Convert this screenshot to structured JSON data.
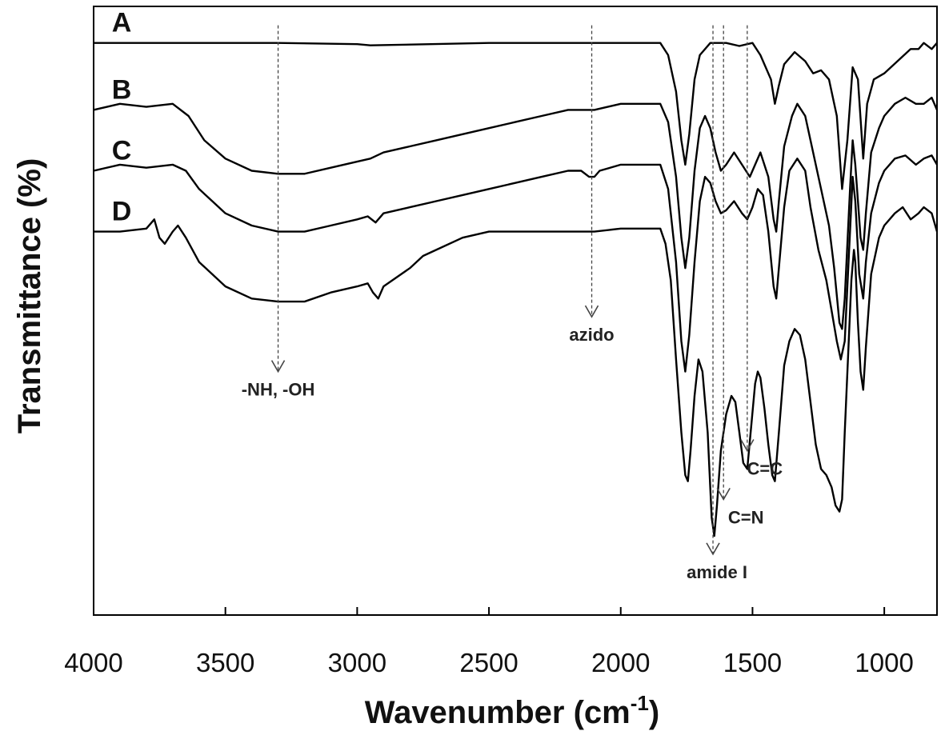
{
  "chart_data": {
    "type": "line",
    "xlabel": "Wavenumber (cm",
    "xlabel_sup": "-1",
    "xlabel_close": ")",
    "ylabel": "Transmittance (%)",
    "xlim": [
      4000,
      800
    ],
    "ylim": [
      0,
      100
    ],
    "x_reversed": true,
    "grid": false,
    "xticks": [
      4000,
      3500,
      3000,
      2500,
      2000,
      1500,
      1000
    ],
    "series": [
      {
        "name": "A",
        "points": [
          [
            4000,
            94
          ],
          [
            3500,
            94
          ],
          [
            3300,
            94
          ],
          [
            3000,
            93.8
          ],
          [
            2950,
            93.6
          ],
          [
            2500,
            94
          ],
          [
            2100,
            94
          ],
          [
            1850,
            94
          ],
          [
            1820,
            92
          ],
          [
            1790,
            86
          ],
          [
            1770,
            78
          ],
          [
            1755,
            74
          ],
          [
            1740,
            79
          ],
          [
            1720,
            88
          ],
          [
            1700,
            92
          ],
          [
            1660,
            94
          ],
          [
            1600,
            94
          ],
          [
            1550,
            93.5
          ],
          [
            1500,
            94
          ],
          [
            1470,
            92
          ],
          [
            1430,
            88
          ],
          [
            1415,
            84
          ],
          [
            1400,
            87
          ],
          [
            1380,
            90.5
          ],
          [
            1340,
            92.5
          ],
          [
            1300,
            91
          ],
          [
            1270,
            89
          ],
          [
            1240,
            89.5
          ],
          [
            1210,
            88
          ],
          [
            1180,
            82
          ],
          [
            1160,
            70
          ],
          [
            1140,
            78
          ],
          [
            1120,
            90
          ],
          [
            1100,
            88
          ],
          [
            1080,
            75
          ],
          [
            1065,
            84
          ],
          [
            1040,
            88
          ],
          [
            1000,
            89
          ],
          [
            950,
            91
          ],
          [
            900,
            93
          ],
          [
            870,
            93
          ],
          [
            850,
            94
          ],
          [
            820,
            93
          ],
          [
            800,
            94
          ]
        ]
      },
      {
        "name": "B",
        "points": [
          [
            4000,
            83
          ],
          [
            3900,
            84
          ],
          [
            3800,
            83.5
          ],
          [
            3700,
            84
          ],
          [
            3640,
            82
          ],
          [
            3580,
            78
          ],
          [
            3500,
            75
          ],
          [
            3400,
            73
          ],
          [
            3300,
            72.5
          ],
          [
            3200,
            72.5
          ],
          [
            3100,
            73.5
          ],
          [
            3000,
            74.5
          ],
          [
            2950,
            75
          ],
          [
            2900,
            76
          ],
          [
            2800,
            77
          ],
          [
            2700,
            78
          ],
          [
            2600,
            79
          ],
          [
            2500,
            80
          ],
          [
            2400,
            81
          ],
          [
            2300,
            82
          ],
          [
            2200,
            83
          ],
          [
            2100,
            83
          ],
          [
            2000,
            84
          ],
          [
            1850,
            84
          ],
          [
            1820,
            81
          ],
          [
            1790,
            72
          ],
          [
            1770,
            62
          ],
          [
            1755,
            57
          ],
          [
            1740,
            62
          ],
          [
            1720,
            73
          ],
          [
            1700,
            80
          ],
          [
            1680,
            82
          ],
          [
            1660,
            80
          ],
          [
            1640,
            76
          ],
          [
            1620,
            73
          ],
          [
            1600,
            74
          ],
          [
            1570,
            76
          ],
          [
            1540,
            74
          ],
          [
            1510,
            72
          ],
          [
            1490,
            74
          ],
          [
            1470,
            76
          ],
          [
            1440,
            72
          ],
          [
            1420,
            65
          ],
          [
            1410,
            63
          ],
          [
            1400,
            68
          ],
          [
            1380,
            77
          ],
          [
            1350,
            82
          ],
          [
            1330,
            84
          ],
          [
            1300,
            82
          ],
          [
            1270,
            76
          ],
          [
            1240,
            70
          ],
          [
            1210,
            64
          ],
          [
            1190,
            57
          ],
          [
            1170,
            48
          ],
          [
            1160,
            47
          ],
          [
            1150,
            52
          ],
          [
            1130,
            70
          ],
          [
            1120,
            78
          ],
          [
            1110,
            74
          ],
          [
            1090,
            62
          ],
          [
            1080,
            60
          ],
          [
            1070,
            66
          ],
          [
            1050,
            76
          ],
          [
            1020,
            80
          ],
          [
            1000,
            82
          ],
          [
            960,
            84
          ],
          [
            920,
            85
          ],
          [
            880,
            84
          ],
          [
            850,
            84
          ],
          [
            820,
            85
          ],
          [
            800,
            83
          ]
        ]
      },
      {
        "name": "C",
        "points": [
          [
            4000,
            73
          ],
          [
            3900,
            74
          ],
          [
            3800,
            73.5
          ],
          [
            3700,
            74
          ],
          [
            3650,
            73
          ],
          [
            3600,
            70
          ],
          [
            3500,
            66
          ],
          [
            3400,
            64
          ],
          [
            3300,
            63
          ],
          [
            3200,
            63
          ],
          [
            3100,
            64
          ],
          [
            3000,
            65
          ],
          [
            2960,
            65.5
          ],
          [
            2930,
            64.5
          ],
          [
            2900,
            66
          ],
          [
            2800,
            67
          ],
          [
            2700,
            68
          ],
          [
            2600,
            69
          ],
          [
            2500,
            70
          ],
          [
            2400,
            71
          ],
          [
            2300,
            72
          ],
          [
            2200,
            73
          ],
          [
            2150,
            73
          ],
          [
            2120,
            72
          ],
          [
            2100,
            72
          ],
          [
            2080,
            73
          ],
          [
            2000,
            74
          ],
          [
            1850,
            74
          ],
          [
            1820,
            70
          ],
          [
            1790,
            58
          ],
          [
            1770,
            45
          ],
          [
            1755,
            40
          ],
          [
            1740,
            46
          ],
          [
            1720,
            58
          ],
          [
            1700,
            68
          ],
          [
            1680,
            72
          ],
          [
            1660,
            71
          ],
          [
            1640,
            68
          ],
          [
            1620,
            66
          ],
          [
            1600,
            66.5
          ],
          [
            1570,
            68
          ],
          [
            1540,
            66
          ],
          [
            1520,
            65
          ],
          [
            1500,
            67
          ],
          [
            1480,
            70
          ],
          [
            1460,
            69
          ],
          [
            1440,
            63
          ],
          [
            1420,
            54
          ],
          [
            1410,
            52
          ],
          [
            1400,
            57
          ],
          [
            1380,
            67
          ],
          [
            1360,
            73
          ],
          [
            1330,
            75
          ],
          [
            1300,
            73
          ],
          [
            1280,
            67
          ],
          [
            1250,
            60
          ],
          [
            1220,
            55
          ],
          [
            1200,
            50
          ],
          [
            1180,
            45
          ],
          [
            1165,
            42
          ],
          [
            1150,
            45
          ],
          [
            1130,
            63
          ],
          [
            1120,
            72
          ],
          [
            1110,
            68
          ],
          [
            1095,
            56
          ],
          [
            1080,
            52
          ],
          [
            1070,
            58
          ],
          [
            1050,
            66
          ],
          [
            1020,
            71
          ],
          [
            1000,
            73
          ],
          [
            960,
            75
          ],
          [
            920,
            75.5
          ],
          [
            880,
            74
          ],
          [
            850,
            75
          ],
          [
            820,
            75.5
          ],
          [
            800,
            74
          ]
        ]
      },
      {
        "name": "D",
        "points": [
          [
            4000,
            63
          ],
          [
            3900,
            63
          ],
          [
            3800,
            63.5
          ],
          [
            3770,
            65
          ],
          [
            3750,
            62
          ],
          [
            3730,
            61
          ],
          [
            3700,
            63
          ],
          [
            3680,
            64
          ],
          [
            3650,
            62
          ],
          [
            3600,
            58
          ],
          [
            3500,
            54
          ],
          [
            3400,
            52
          ],
          [
            3300,
            51.5
          ],
          [
            3200,
            51.5
          ],
          [
            3100,
            53
          ],
          [
            3000,
            54
          ],
          [
            2960,
            54.5
          ],
          [
            2940,
            53
          ],
          [
            2920,
            52
          ],
          [
            2900,
            54
          ],
          [
            2800,
            57
          ],
          [
            2750,
            59
          ],
          [
            2700,
            60
          ],
          [
            2600,
            62
          ],
          [
            2500,
            63
          ],
          [
            2400,
            63
          ],
          [
            2300,
            63
          ],
          [
            2200,
            63
          ],
          [
            2100,
            63
          ],
          [
            2000,
            63.5
          ],
          [
            1900,
            63.5
          ],
          [
            1850,
            63.5
          ],
          [
            1830,
            61
          ],
          [
            1810,
            55
          ],
          [
            1790,
            42
          ],
          [
            1770,
            30
          ],
          [
            1755,
            23
          ],
          [
            1745,
            22
          ],
          [
            1735,
            27
          ],
          [
            1720,
            36
          ],
          [
            1705,
            42
          ],
          [
            1690,
            40
          ],
          [
            1670,
            30
          ],
          [
            1655,
            16
          ],
          [
            1645,
            13
          ],
          [
            1635,
            18
          ],
          [
            1620,
            27
          ],
          [
            1600,
            33
          ],
          [
            1580,
            36
          ],
          [
            1565,
            35
          ],
          [
            1550,
            30
          ],
          [
            1535,
            25
          ],
          [
            1520,
            24
          ],
          [
            1505,
            31
          ],
          [
            1490,
            38
          ],
          [
            1480,
            40
          ],
          [
            1470,
            39
          ],
          [
            1455,
            34
          ],
          [
            1440,
            28
          ],
          [
            1425,
            23
          ],
          [
            1415,
            22
          ],
          [
            1400,
            30
          ],
          [
            1380,
            41
          ],
          [
            1360,
            45
          ],
          [
            1340,
            47
          ],
          [
            1320,
            46
          ],
          [
            1300,
            42
          ],
          [
            1280,
            35
          ],
          [
            1260,
            28
          ],
          [
            1240,
            24
          ],
          [
            1220,
            23
          ],
          [
            1200,
            21
          ],
          [
            1185,
            18
          ],
          [
            1170,
            17
          ],
          [
            1160,
            19
          ],
          [
            1150,
            30
          ],
          [
            1135,
            45
          ],
          [
            1125,
            55
          ],
          [
            1115,
            60
          ],
          [
            1110,
            58
          ],
          [
            1100,
            48
          ],
          [
            1090,
            40
          ],
          [
            1080,
            37
          ],
          [
            1070,
            44
          ],
          [
            1050,
            56
          ],
          [
            1020,
            62
          ],
          [
            1000,
            64
          ],
          [
            960,
            66
          ],
          [
            930,
            67
          ],
          [
            900,
            65
          ],
          [
            870,
            66
          ],
          [
            850,
            67
          ],
          [
            820,
            66
          ],
          [
            800,
            63
          ]
        ]
      }
    ],
    "trace_labels": [
      "A",
      "B",
      "C",
      "D"
    ],
    "annotations": [
      {
        "text": "-NH, -OH",
        "x": 3300,
        "y_top": 94,
        "y_arrow": 40
      },
      {
        "text": "azido",
        "x": 2110,
        "y_top": 94,
        "y_arrow": 49
      },
      {
        "text": "C=C",
        "x": 1520,
        "y_top": 94,
        "y_arrow": 27
      },
      {
        "text": "C=N",
        "x": 1610,
        "y_top": 94,
        "y_arrow": 19
      },
      {
        "text": "amide I",
        "x": 1650,
        "y_top": 94,
        "y_arrow": 10
      }
    ],
    "colors": {
      "line": "#000000",
      "annotation": "#444444",
      "axis": "#000000"
    }
  }
}
